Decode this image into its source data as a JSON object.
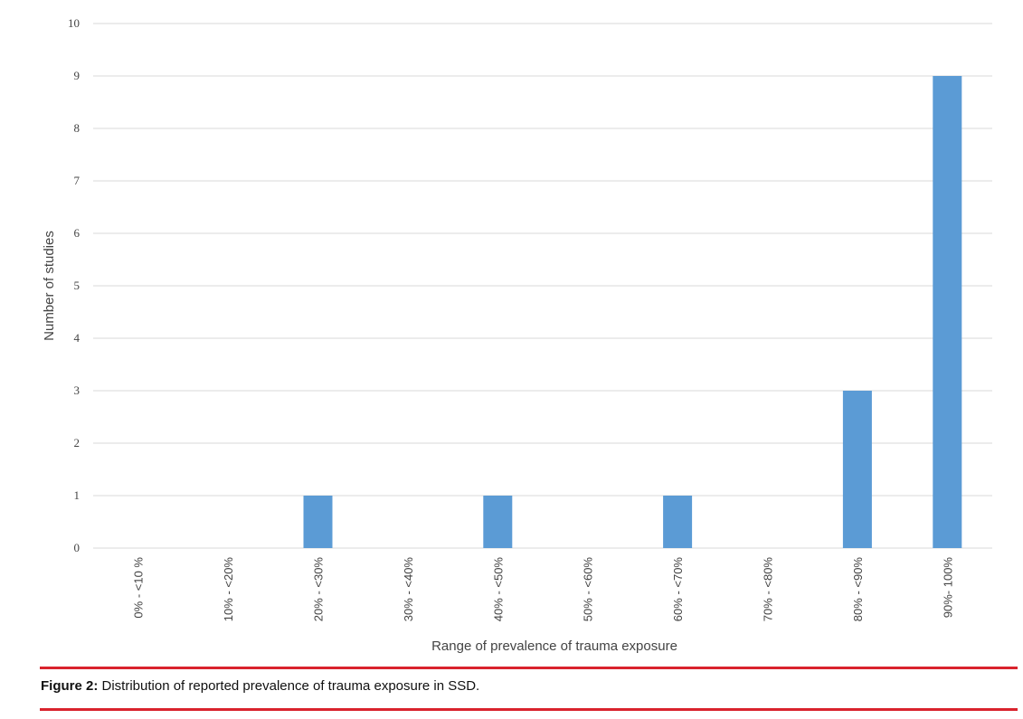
{
  "chart_data": {
    "type": "bar",
    "categories": [
      "0% - <10 %",
      "10% - <20%",
      "20% - <30%",
      "30% - <40%",
      "40% - <50%",
      "50% - <60%",
      "60% - <70%",
      "70% - <80%",
      "80% - <90%",
      "90%- 100%"
    ],
    "values": [
      0,
      0,
      1,
      0,
      1,
      0,
      1,
      0,
      3,
      9
    ],
    "xlabel": "Range of prevalence of trauma exposure",
    "ylabel": "Number of studies",
    "ylim": [
      0,
      10
    ],
    "yticks": [
      "0",
      "1",
      "2",
      "3",
      "4",
      "5",
      "6",
      "7",
      "8",
      "9",
      "10"
    ],
    "grid": true,
    "bar_color": "#5b9bd5",
    "grid_color": "#d9d9d9"
  },
  "caption": {
    "label": "Figure 2:",
    "text": " Distribution of reported prevalence of trauma exposure in SSD."
  },
  "rule_color": "#d9232d"
}
